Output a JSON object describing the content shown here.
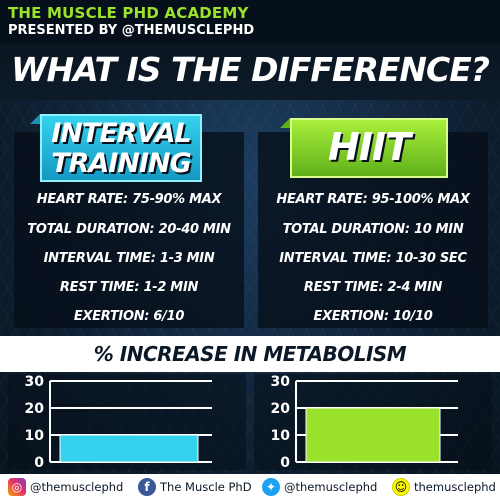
{
  "brand": {
    "title": "THE MUSCLE PHD ACADEMY",
    "subtitle": "PRESENTED BY @THEMUSCLEPHD"
  },
  "headline": "WHAT IS THE DIFFERENCE?",
  "left": {
    "tag_line1": "INTERVAL",
    "tag_line2": "TRAINING",
    "tag_color": "#35d2ee",
    "stats": [
      "HEART RATE: 75-90% MAX",
      "TOTAL DURATION: 20-40 MIN",
      "INTERVAL TIME: 1-3 MIN",
      "REST TIME: 1-2 MIN",
      "EXERTION: 6/10"
    ]
  },
  "right": {
    "tag": "HIIT",
    "tag_color": "#9be22d",
    "stats": [
      "HEART RATE: 95-100% MAX",
      "TOTAL DURATION: 10 MIN",
      "INTERVAL TIME: 10-30 SEC",
      "REST TIME: 2-4 MIN",
      "EXERTION: 10/10"
    ]
  },
  "metabolism_title": "% INCREASE IN METABOLISM",
  "chart_data": [
    {
      "type": "bar",
      "categories": [
        "INTERVAL TRAINING"
      ],
      "values": [
        10
      ],
      "ylim": [
        0,
        30
      ],
      "yticks": [
        "30",
        "20",
        "10",
        "0"
      ],
      "color": "#35d2ee"
    },
    {
      "type": "bar",
      "categories": [
        "HIIT"
      ],
      "values": [
        20
      ],
      "ylim": [
        0,
        30
      ],
      "yticks": [
        "30",
        "20",
        "10",
        "0"
      ],
      "color": "#9be22d"
    }
  ],
  "footer": {
    "items": [
      {
        "icon": "instagram-icon",
        "glyph": "◎",
        "label": "@themusclephd"
      },
      {
        "icon": "facebook-icon",
        "glyph": "f",
        "label": "The Muscle PhD"
      },
      {
        "icon": "twitter-icon",
        "glyph": "✦",
        "label": "@themusclephd"
      },
      {
        "icon": "snapchat-icon",
        "glyph": "☺",
        "label": "themusclephd"
      }
    ]
  }
}
